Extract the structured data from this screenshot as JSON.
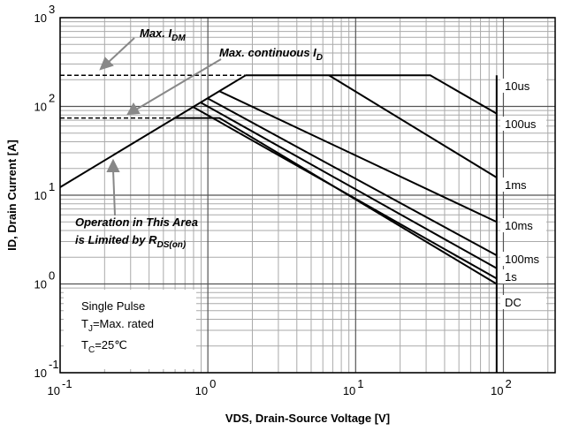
{
  "chart_data": {
    "type": "line",
    "x_label": "VDS, Drain-Source Voltage [V]",
    "y_label": "ID, Drain Current [A]",
    "log_x": true,
    "log_y": true,
    "grid": true,
    "xlim": [
      0.1,
      224
    ],
    "ylim": [
      0.1,
      1000
    ],
    "xticks": [
      {
        "value": 0.1,
        "label": "10",
        "exp": "-1"
      },
      {
        "value": 1,
        "label": "10",
        "exp": "0"
      },
      {
        "value": 10,
        "label": "10",
        "exp": "1"
      },
      {
        "value": 100,
        "label": "10",
        "exp": "2"
      }
    ],
    "yticks": [
      {
        "value": 0.1,
        "label": "10",
        "exp": "-1"
      },
      {
        "value": 1,
        "label": "10",
        "exp": "0"
      },
      {
        "value": 10,
        "label": "10",
        "exp": "1"
      },
      {
        "value": 100,
        "label": "10",
        "exp": "2"
      },
      {
        "value": 1000,
        "label": "10",
        "exp": "3"
      }
    ],
    "series": [
      {
        "name": "10us",
        "color": "#000000",
        "x": [
          1.8,
          32,
          90
        ],
        "values": [
          224,
          224,
          83
        ]
      },
      {
        "name": "100us",
        "color": "#000000",
        "x": [
          6.6,
          90
        ],
        "values": [
          224,
          15.8
        ]
      },
      {
        "name": "1ms",
        "color": "#000000",
        "x": [
          1.2,
          90
        ],
        "values": [
          148,
          5
        ]
      },
      {
        "name": "10ms",
        "color": "#000000",
        "x": [
          1.0,
          90
        ],
        "values": [
          123,
          2.1
        ]
      },
      {
        "name": "100ms",
        "color": "#000000",
        "x": [
          0.9,
          90
        ],
        "values": [
          110,
          1.5
        ]
      },
      {
        "name": "1s",
        "color": "#000000",
        "x": [
          0.8,
          90
        ],
        "values": [
          98,
          1.15
        ]
      },
      {
        "name": "DC",
        "color": "#000000",
        "x": [
          0.6,
          1.2,
          90
        ],
        "values": [
          74,
          74,
          1.0
        ]
      }
    ],
    "lines": [
      {
        "x": [
          0.1,
          1.8
        ],
        "values": [
          12.3,
          224
        ],
        "dashed": false
      },
      {
        "x": [
          90,
          90
        ],
        "values": [
          224,
          0.1
        ],
        "dashed": false
      },
      {
        "x": [
          0.1,
          1.8
        ],
        "values": [
          224,
          224
        ],
        "dashed": true
      },
      {
        "x": [
          0.1,
          0.6
        ],
        "values": [
          74,
          74
        ],
        "dashed": true
      }
    ],
    "annotations": [
      {
        "text": "Max. I",
        "sub": "DM"
      },
      {
        "text": "Max. continuous I",
        "sub": "D"
      },
      {
        "text": "Operation in This Area"
      },
      {
        "text": "is Limited by R",
        "sub": "DS(on)"
      }
    ],
    "note": [
      {
        "text": "Single Pulse"
      },
      {
        "text": "T",
        "sub": "J",
        "rest": "=Max. rated"
      },
      {
        "text": "T",
        "sub": "C",
        "rest": "=25℃"
      }
    ]
  }
}
